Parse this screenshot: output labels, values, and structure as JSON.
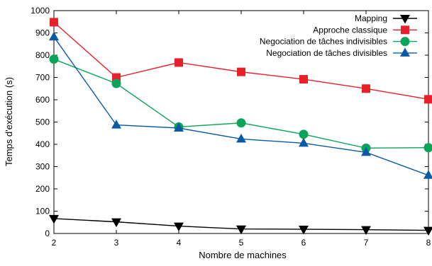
{
  "chart_data": {
    "type": "line",
    "title": "",
    "xlabel": "Nombre de machines",
    "ylabel": "Temps d'exécution (s)",
    "x": [
      2,
      3,
      4,
      5,
      6,
      7,
      8
    ],
    "xlim": [
      2,
      8
    ],
    "ylim": [
      0,
      1000
    ],
    "xticks": [
      "2",
      "3",
      "4",
      "5",
      "6",
      "7",
      "8"
    ],
    "yticks": [
      "0",
      "100",
      "200",
      "300",
      "400",
      "500",
      "600",
      "700",
      "800",
      "900",
      "1000"
    ],
    "grid": false,
    "legend_position": "top-right",
    "series": [
      {
        "name": "Mapping",
        "color": "#000000",
        "marker": "triangle-down",
        "values": [
          67,
          52,
          33,
          20,
          19,
          17,
          14
        ]
      },
      {
        "name": "Approche classique",
        "color": "#e8202a",
        "marker": "square",
        "values": [
          948,
          700,
          767,
          725,
          692,
          650,
          602
        ]
      },
      {
        "name": "Negociation de tâches indivisibles",
        "color": "#0aa55a",
        "marker": "circle",
        "values": [
          782,
          673,
          478,
          496,
          445,
          383,
          385
        ]
      },
      {
        "name": "Negociation de tâches divisibles",
        "color": "#0b5aa5",
        "marker": "triangle-up",
        "values": [
          882,
          487,
          473,
          424,
          405,
          364,
          261
        ]
      }
    ]
  }
}
